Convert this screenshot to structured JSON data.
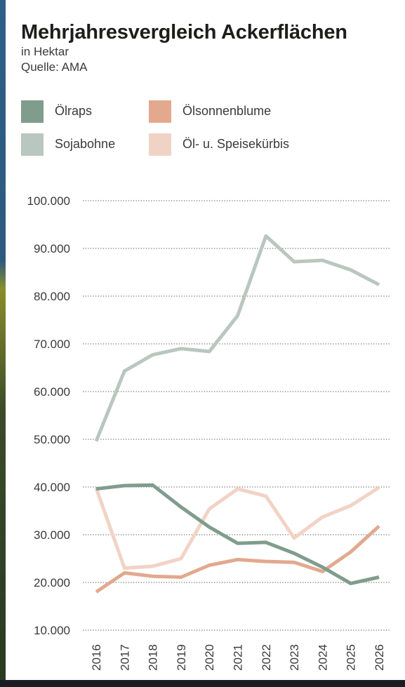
{
  "header": {
    "title": "Mehrjahresvergleich Ackerflächen",
    "subtitle": "in Hektar",
    "source": "Quelle: AMA"
  },
  "legend": {
    "items": [
      {
        "label": "Ölraps",
        "color": "#809c8d"
      },
      {
        "label": "Ölsonnenblume",
        "color": "#e2a98e"
      },
      {
        "label": "Sojabohne",
        "color": "#bac6c0"
      },
      {
        "label": "Öl- u. Speisekürbis",
        "color": "#f1d3c5"
      }
    ]
  },
  "chart_data": {
    "type": "line",
    "x": [
      "2016",
      "2017",
      "2018",
      "2019",
      "2020",
      "2021",
      "2022",
      "2023",
      "2024",
      "2025",
      "2026"
    ],
    "ylim": [
      10000,
      100000
    ],
    "yticks": [
      "10.000",
      "20.000",
      "30.000",
      "40.000",
      "50.000",
      "60.000",
      "70.000",
      "80.000",
      "90.000",
      "100.000"
    ],
    "ytick_values": [
      10000,
      20000,
      30000,
      40000,
      50000,
      60000,
      70000,
      80000,
      90000,
      100000
    ],
    "grid": "horizontal dotted",
    "legend_position": "top",
    "series": [
      {
        "name": "Sojabohne",
        "color": "#bac6c0",
        "values": [
          49600,
          64300,
          67700,
          69000,
          68400,
          75900,
          92600,
          87200,
          87500,
          85500,
          82400
        ]
      },
      {
        "name": "Öl- u. Speisekürbis",
        "color": "#f1d3c5",
        "values": [
          39800,
          23000,
          23400,
          25000,
          35400,
          39600,
          38100,
          29300,
          33700,
          36100,
          39900
        ]
      },
      {
        "name": "Ölsonnenblume",
        "color": "#e2a98e",
        "values": [
          18000,
          22000,
          21300,
          21100,
          23600,
          24800,
          24400,
          24200,
          22300,
          26400,
          31800
        ]
      },
      {
        "name": "Ölraps",
        "color": "#809c8d",
        "values": [
          39600,
          40300,
          40400,
          35800,
          31600,
          28200,
          28400,
          26100,
          23200,
          19800,
          21100
        ]
      }
    ]
  }
}
